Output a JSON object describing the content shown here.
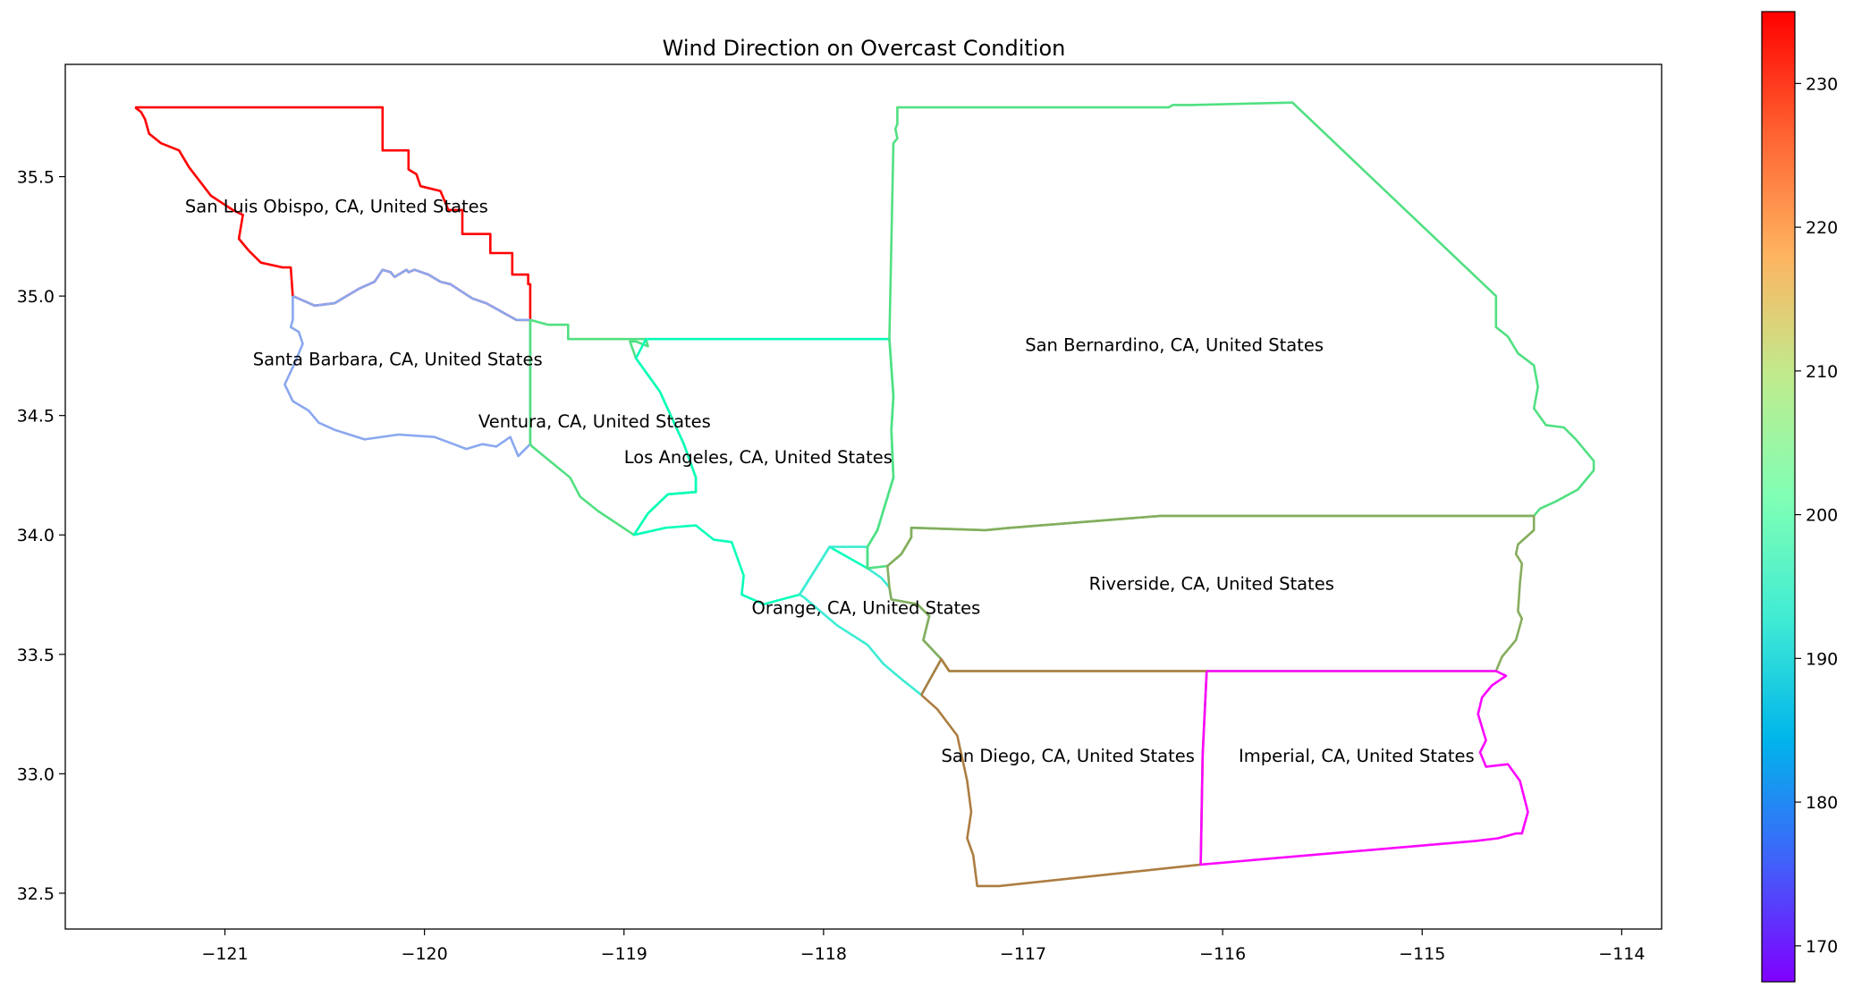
{
  "title": "Wind Direction on Overcast Condition",
  "chart_data": {
    "type": "choropleth-outline",
    "title": "Wind Direction on Overcast Condition",
    "xlim": [
      -121.8,
      -113.8
    ],
    "ylim": [
      32.35,
      35.97
    ],
    "xticks": [
      -121,
      -120,
      -119,
      -118,
      -117,
      -116,
      -115,
      -114
    ],
    "yticks": [
      32.5,
      33.0,
      33.5,
      34.0,
      34.5,
      35.0,
      35.5
    ],
    "colorbar": {
      "vmin": 167.5,
      "vmax": 235.0,
      "ticks": [
        170,
        180,
        190,
        200,
        210,
        220,
        230
      ],
      "colormap": "rainbow"
    },
    "regions": [
      {
        "name": "San Luis Obispo, CA, United States",
        "value": 235,
        "label_pos": [
          -121.2,
          35.35
        ],
        "boundary": [
          [
            -121.45,
            35.79
          ],
          [
            -120.21,
            35.79
          ],
          [
            -120.21,
            35.61
          ],
          [
            -120.08,
            35.61
          ],
          [
            -120.08,
            35.53
          ],
          [
            -120.04,
            35.51
          ],
          [
            -120.02,
            35.46
          ],
          [
            -119.92,
            35.44
          ],
          [
            -119.92,
            35.44
          ],
          [
            -119.88,
            35.36
          ],
          [
            -119.81,
            35.36
          ],
          [
            -119.81,
            35.26
          ],
          [
            -119.67,
            35.26
          ],
          [
            -119.67,
            35.18
          ],
          [
            -119.56,
            35.18
          ],
          [
            -119.56,
            35.09
          ],
          [
            -119.48,
            35.09
          ],
          [
            -119.48,
            35.05
          ],
          [
            -119.47,
            35.05
          ],
          [
            -119.47,
            34.9
          ],
          [
            -119.54,
            34.9
          ],
          [
            -119.69,
            34.97
          ],
          [
            -119.76,
            34.99
          ],
          [
            -119.87,
            35.05
          ],
          [
            -119.92,
            35.06
          ],
          [
            -119.98,
            35.09
          ],
          [
            -120.05,
            35.11
          ],
          [
            -120.08,
            35.1
          ],
          [
            -120.09,
            35.11
          ],
          [
            -120.15,
            35.08
          ],
          [
            -120.17,
            35.1
          ],
          [
            -120.21,
            35.11
          ],
          [
            -120.25,
            35.06
          ],
          [
            -120.33,
            35.03
          ],
          [
            -120.45,
            34.97
          ],
          [
            -120.55,
            34.96
          ],
          [
            -120.66,
            35.0
          ],
          [
            -120.67,
            35.12
          ],
          [
            -120.71,
            35.12
          ],
          [
            -120.82,
            35.14
          ],
          [
            -120.88,
            35.19
          ],
          [
            -120.93,
            35.24
          ],
          [
            -120.91,
            35.34
          ],
          [
            -120.96,
            35.36
          ],
          [
            -121.07,
            35.42
          ],
          [
            -121.18,
            35.54
          ],
          [
            -121.23,
            35.61
          ],
          [
            -121.32,
            35.64
          ],
          [
            -121.38,
            35.68
          ],
          [
            -121.4,
            35.74
          ],
          [
            -121.42,
            35.77
          ],
          [
            -121.45,
            35.79
          ]
        ]
      },
      {
        "name": "Santa Barbara, CA, United States",
        "value": 183,
        "label_pos": [
          -120.86,
          34.71
        ],
        "boundary": [
          [
            -120.66,
            35.0
          ],
          [
            -120.55,
            34.96
          ],
          [
            -120.45,
            34.97
          ],
          [
            -120.33,
            35.03
          ],
          [
            -120.25,
            35.06
          ],
          [
            -120.21,
            35.11
          ],
          [
            -120.17,
            35.1
          ],
          [
            -120.15,
            35.08
          ],
          [
            -120.09,
            35.11
          ],
          [
            -120.08,
            35.1
          ],
          [
            -120.05,
            35.11
          ],
          [
            -119.98,
            35.09
          ],
          [
            -119.92,
            35.06
          ],
          [
            -119.87,
            35.05
          ],
          [
            -119.76,
            34.99
          ],
          [
            -119.69,
            34.97
          ],
          [
            -119.54,
            34.9
          ],
          [
            -119.47,
            34.9
          ],
          [
            -119.47,
            34.88
          ],
          [
            -119.47,
            34.38
          ],
          [
            -119.53,
            34.33
          ],
          [
            -119.57,
            34.41
          ],
          [
            -119.64,
            34.37
          ],
          [
            -119.71,
            34.38
          ],
          [
            -119.79,
            34.36
          ],
          [
            -119.95,
            34.41
          ],
          [
            -120.13,
            34.42
          ],
          [
            -120.3,
            34.4
          ],
          [
            -120.45,
            34.44
          ],
          [
            -120.53,
            34.47
          ],
          [
            -120.58,
            34.52
          ],
          [
            -120.66,
            34.56
          ],
          [
            -120.7,
            34.63
          ],
          [
            -120.65,
            34.72
          ],
          [
            -120.61,
            34.8
          ],
          [
            -120.63,
            34.85
          ],
          [
            -120.67,
            34.87
          ],
          [
            -120.66,
            34.9
          ],
          [
            -120.66,
            35.0
          ]
        ]
      },
      {
        "name": "Ventura, CA, United States",
        "value": 212,
        "label_pos": [
          -119.73,
          34.45
        ],
        "boundary": [
          [
            -119.47,
            34.9
          ],
          [
            -119.38,
            34.88
          ],
          [
            -119.28,
            34.88
          ],
          [
            -119.28,
            34.82
          ],
          [
            -119.02,
            34.82
          ],
          [
            -118.89,
            34.82
          ],
          [
            -118.88,
            34.79
          ],
          [
            -118.94,
            34.81
          ],
          [
            -118.97,
            34.81
          ],
          [
            -118.94,
            34.74
          ],
          [
            -118.82,
            34.6
          ],
          [
            -118.7,
            34.38
          ],
          [
            -118.64,
            34.24
          ],
          [
            -118.64,
            34.18
          ],
          [
            -118.78,
            34.17
          ],
          [
            -118.88,
            34.09
          ],
          [
            -118.95,
            34.0
          ],
          [
            -119.13,
            34.1
          ],
          [
            -119.22,
            34.16
          ],
          [
            -119.27,
            34.24
          ],
          [
            -119.46,
            34.37
          ],
          [
            -119.47,
            34.38
          ],
          [
            -119.47,
            34.88
          ],
          [
            -119.47,
            34.9
          ]
        ]
      },
      {
        "name": "Los Angeles, CA, United States",
        "value": 200,
        "label_pos": [
          -119.0,
          34.3
        ],
        "boundary": [
          [
            -118.89,
            34.82
          ],
          [
            -118.0,
            34.82
          ],
          [
            -117.67,
            34.82
          ],
          [
            -117.65,
            34.58
          ],
          [
            -117.66,
            34.44
          ],
          [
            -117.65,
            34.24
          ],
          [
            -117.73,
            34.02
          ],
          [
            -117.78,
            33.95
          ],
          [
            -117.78,
            33.86
          ],
          [
            -117.97,
            33.95
          ],
          [
            -118.12,
            33.75
          ],
          [
            -118.3,
            33.71
          ],
          [
            -118.41,
            33.75
          ],
          [
            -118.4,
            33.83
          ],
          [
            -118.46,
            33.97
          ],
          [
            -118.55,
            33.98
          ],
          [
            -118.64,
            34.04
          ],
          [
            -118.79,
            34.03
          ],
          [
            -118.95,
            34.0
          ],
          [
            -118.88,
            34.09
          ],
          [
            -118.78,
            34.17
          ],
          [
            -118.64,
            34.18
          ],
          [
            -118.64,
            34.24
          ],
          [
            -118.7,
            34.38
          ],
          [
            -118.82,
            34.6
          ],
          [
            -118.94,
            34.74
          ],
          [
            -118.89,
            34.82
          ]
        ]
      },
      {
        "name": "Orange, CA, United States",
        "value": 193,
        "label_pos": [
          -118.36,
          33.67
        ],
        "boundary": [
          [
            -118.12,
            33.75
          ],
          [
            -117.97,
            33.95
          ],
          [
            -117.78,
            33.95
          ],
          [
            -117.78,
            33.86
          ],
          [
            -117.71,
            33.82
          ],
          [
            -117.67,
            33.78
          ],
          [
            -117.66,
            33.73
          ],
          [
            -117.53,
            33.71
          ],
          [
            -117.47,
            33.66
          ],
          [
            -117.5,
            33.56
          ],
          [
            -117.41,
            33.48
          ],
          [
            -117.51,
            33.33
          ],
          [
            -117.6,
            33.39
          ],
          [
            -117.7,
            33.46
          ],
          [
            -117.78,
            33.54
          ],
          [
            -117.93,
            33.62
          ],
          [
            -118.1,
            33.74
          ],
          [
            -118.12,
            33.75
          ]
        ]
      },
      {
        "name": "San Bernardino, CA, United States",
        "value": 212,
        "label_pos": [
          -116.99,
          34.77
        ],
        "boundary": [
          [
            -117.67,
            34.82
          ],
          [
            -117.65,
            35.64
          ],
          [
            -117.63,
            35.66
          ],
          [
            -117.64,
            35.7
          ],
          [
            -117.63,
            35.72
          ],
          [
            -117.63,
            35.79
          ],
          [
            -116.27,
            35.79
          ],
          [
            -116.25,
            35.8
          ],
          [
            -116.16,
            35.8
          ],
          [
            -115.65,
            35.81
          ],
          [
            -114.63,
            35.0
          ],
          [
            -114.63,
            34.87
          ],
          [
            -114.57,
            34.83
          ],
          [
            -114.52,
            34.76
          ],
          [
            -114.44,
            34.71
          ],
          [
            -114.42,
            34.62
          ],
          [
            -114.44,
            34.53
          ],
          [
            -114.38,
            34.46
          ],
          [
            -114.29,
            34.45
          ],
          [
            -114.23,
            34.4
          ],
          [
            -114.14,
            34.31
          ],
          [
            -114.14,
            34.27
          ],
          [
            -114.22,
            34.19
          ],
          [
            -114.33,
            34.14
          ],
          [
            -114.41,
            34.11
          ],
          [
            -114.44,
            34.08
          ],
          [
            -115.32,
            34.08
          ],
          [
            -116.31,
            34.08
          ],
          [
            -117.06,
            34.03
          ],
          [
            -117.19,
            34.02
          ],
          [
            -117.56,
            34.03
          ],
          [
            -117.56,
            33.99
          ],
          [
            -117.61,
            33.92
          ],
          [
            -117.68,
            33.87
          ],
          [
            -117.78,
            33.86
          ],
          [
            -117.78,
            33.95
          ],
          [
            -117.73,
            34.02
          ],
          [
            -117.65,
            34.24
          ],
          [
            -117.66,
            34.44
          ],
          [
            -117.65,
            34.58
          ],
          [
            -117.67,
            34.82
          ]
        ]
      },
      {
        "name": "Riverside, CA, United States",
        "value": 219,
        "label_pos": [
          -116.67,
          33.77
        ],
        "boundary": [
          [
            -117.67,
            33.78
          ],
          [
            -117.68,
            33.87
          ],
          [
            -117.61,
            33.92
          ],
          [
            -117.56,
            33.99
          ],
          [
            -117.56,
            34.03
          ],
          [
            -117.19,
            34.02
          ],
          [
            -117.06,
            34.03
          ],
          [
            -116.31,
            34.08
          ],
          [
            -115.32,
            34.08
          ],
          [
            -114.44,
            34.08
          ],
          [
            -114.44,
            34.02
          ],
          [
            -114.52,
            33.96
          ],
          [
            -114.53,
            33.92
          ],
          [
            -114.5,
            33.88
          ],
          [
            -114.51,
            33.8
          ],
          [
            -114.52,
            33.68
          ],
          [
            -114.5,
            33.65
          ],
          [
            -114.53,
            33.56
          ],
          [
            -114.6,
            33.49
          ],
          [
            -114.63,
            33.43
          ],
          [
            -116.08,
            33.43
          ],
          [
            -117.37,
            33.43
          ],
          [
            -117.41,
            33.48
          ],
          [
            -117.5,
            33.56
          ],
          [
            -117.47,
            33.66
          ],
          [
            -117.53,
            33.71
          ],
          [
            -117.66,
            33.73
          ],
          [
            -117.67,
            33.78
          ]
        ]
      },
      {
        "name": "San Diego, CA, United States",
        "value": 224,
        "label_pos": [
          -117.41,
          33.05
        ],
        "boundary": [
          [
            -117.51,
            33.33
          ],
          [
            -117.41,
            33.48
          ],
          [
            -117.37,
            33.43
          ],
          [
            -116.08,
            33.43
          ],
          [
            -116.1,
            33.08
          ],
          [
            -116.11,
            32.62
          ],
          [
            -117.12,
            32.53
          ],
          [
            -117.23,
            32.53
          ],
          [
            -117.25,
            32.66
          ],
          [
            -117.28,
            32.73
          ],
          [
            -117.26,
            32.84
          ],
          [
            -117.28,
            32.97
          ],
          [
            -117.33,
            33.16
          ],
          [
            -117.43,
            33.27
          ],
          [
            -117.51,
            33.33
          ]
        ]
      },
      {
        "name": "Imperial, CA, United States",
        "value": 168,
        "label_pos": [
          -115.92,
          33.05
        ],
        "boundary": [
          [
            -116.08,
            33.43
          ],
          [
            -114.63,
            33.43
          ],
          [
            -114.58,
            33.41
          ],
          [
            -114.65,
            33.37
          ],
          [
            -114.7,
            33.32
          ],
          [
            -114.72,
            33.25
          ],
          [
            -114.68,
            33.14
          ],
          [
            -114.71,
            33.09
          ],
          [
            -114.68,
            33.03
          ],
          [
            -114.57,
            33.04
          ],
          [
            -114.51,
            32.97
          ],
          [
            -114.47,
            32.84
          ],
          [
            -114.5,
            32.75
          ],
          [
            -114.53,
            32.75
          ],
          [
            -114.62,
            32.73
          ],
          [
            -114.72,
            32.72
          ],
          [
            -116.11,
            32.62
          ],
          [
            -116.1,
            33.08
          ],
          [
            -116.08,
            33.43
          ]
        ]
      }
    ]
  }
}
